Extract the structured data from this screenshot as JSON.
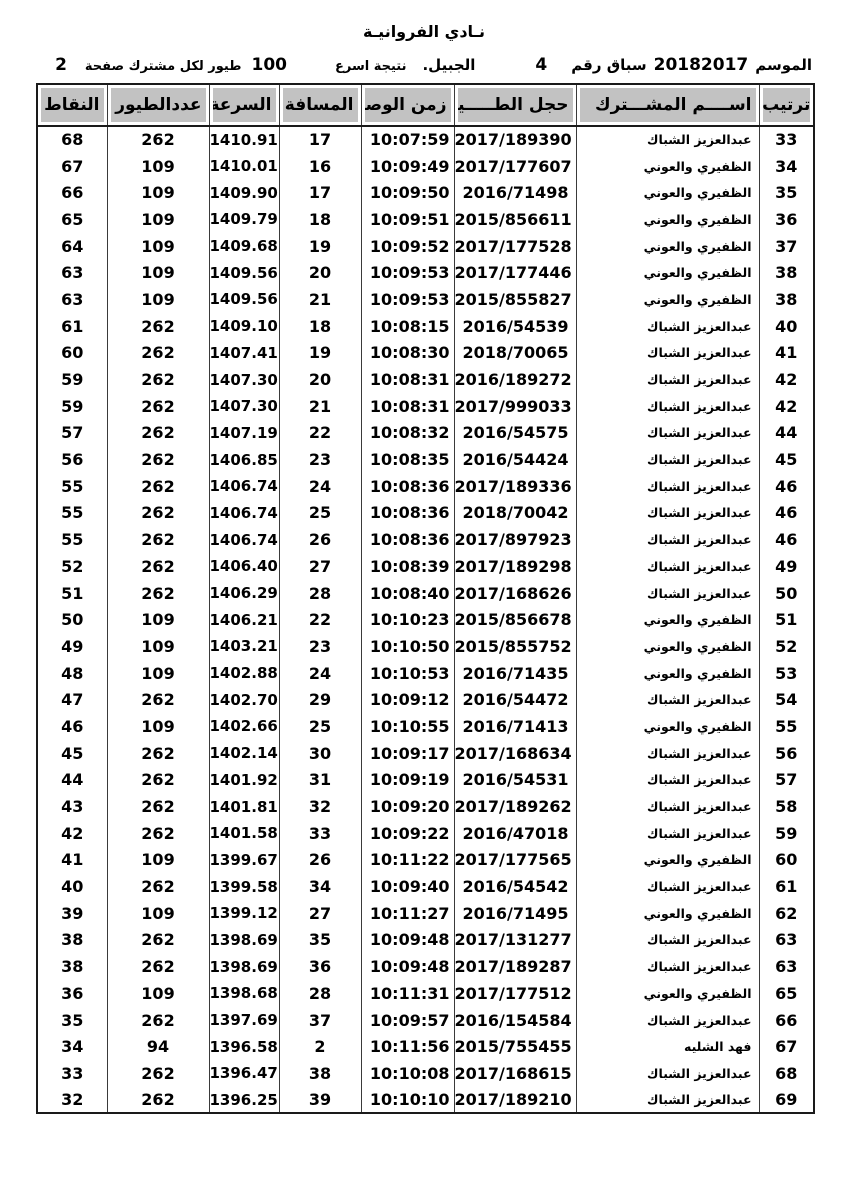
{
  "page": {
    "title": "نـادي الفروانيـة",
    "meta": {
      "season_label": "الموسم",
      "season_value": "20182017",
      "race_label": "سباق رقم",
      "race_value": "4",
      "location": "الجبيل.",
      "result_label": "نتيجة اسرع",
      "result_count": "100",
      "result_suffix": "طيور لكل مشترك صفحة",
      "page_number": "2"
    }
  },
  "table": {
    "headers": {
      "rank": "ترتيب",
      "name": "اســــم المشـــترك",
      "ring": "حجل الطـــــير",
      "time": "زمن الوصول",
      "distance": "المسافة",
      "speed": "السرعة",
      "birds": "عددالطيور",
      "points": "النقاط"
    },
    "rows": [
      {
        "rank": "33",
        "name": "عبدالعزيز الشباك",
        "ring": "2017/189390",
        "time": "10:07:59",
        "distance": "17",
        "speed": "1410.91",
        "birds": "262",
        "points": "68"
      },
      {
        "rank": "34",
        "name": "الظفيري والعوني",
        "ring": "2017/177607",
        "time": "10:09:49",
        "distance": "16",
        "speed": "1410.01",
        "birds": "109",
        "points": "67"
      },
      {
        "rank": "35",
        "name": "الظفيري والعوني",
        "ring": "2016/71498",
        "time": "10:09:50",
        "distance": "17",
        "speed": "1409.90",
        "birds": "109",
        "points": "66"
      },
      {
        "rank": "36",
        "name": "الظفيري والعوني",
        "ring": "2015/856611",
        "time": "10:09:51",
        "distance": "18",
        "speed": "1409.79",
        "birds": "109",
        "points": "65"
      },
      {
        "rank": "37",
        "name": "الظفيري والعوني",
        "ring": "2017/177528",
        "time": "10:09:52",
        "distance": "19",
        "speed": "1409.68",
        "birds": "109",
        "points": "64"
      },
      {
        "rank": "38",
        "name": "الظفيري والعوني",
        "ring": "2017/177446",
        "time": "10:09:53",
        "distance": "20",
        "speed": "1409.56",
        "birds": "109",
        "points": "63"
      },
      {
        "rank": "38",
        "name": "الظفيري والعوني",
        "ring": "2015/855827",
        "time": "10:09:53",
        "distance": "21",
        "speed": "1409.56",
        "birds": "109",
        "points": "63"
      },
      {
        "rank": "40",
        "name": "عبدالعزيز الشباك",
        "ring": "2016/54539",
        "time": "10:08:15",
        "distance": "18",
        "speed": "1409.10",
        "birds": "262",
        "points": "61"
      },
      {
        "rank": "41",
        "name": "عبدالعزيز الشباك",
        "ring": "2018/70065",
        "time": "10:08:30",
        "distance": "19",
        "speed": "1407.41",
        "birds": "262",
        "points": "60"
      },
      {
        "rank": "42",
        "name": "عبدالعزيز الشباك",
        "ring": "2016/189272",
        "time": "10:08:31",
        "distance": "20",
        "speed": "1407.30",
        "birds": "262",
        "points": "59"
      },
      {
        "rank": "42",
        "name": "عبدالعزيز الشباك",
        "ring": "2017/999033",
        "time": "10:08:31",
        "distance": "21",
        "speed": "1407.30",
        "birds": "262",
        "points": "59"
      },
      {
        "rank": "44",
        "name": "عبدالعزيز الشباك",
        "ring": "2016/54575",
        "time": "10:08:32",
        "distance": "22",
        "speed": "1407.19",
        "birds": "262",
        "points": "57"
      },
      {
        "rank": "45",
        "name": "عبدالعزيز الشباك",
        "ring": "2016/54424",
        "time": "10:08:35",
        "distance": "23",
        "speed": "1406.85",
        "birds": "262",
        "points": "56"
      },
      {
        "rank": "46",
        "name": "عبدالعزيز الشباك",
        "ring": "2017/189336",
        "time": "10:08:36",
        "distance": "24",
        "speed": "1406.74",
        "birds": "262",
        "points": "55"
      },
      {
        "rank": "46",
        "name": "عبدالعزيز الشباك",
        "ring": "2018/70042",
        "time": "10:08:36",
        "distance": "25",
        "speed": "1406.74",
        "birds": "262",
        "points": "55"
      },
      {
        "rank": "46",
        "name": "عبدالعزيز الشباك",
        "ring": "2017/897923",
        "time": "10:08:36",
        "distance": "26",
        "speed": "1406.74",
        "birds": "262",
        "points": "55"
      },
      {
        "rank": "49",
        "name": "عبدالعزيز الشباك",
        "ring": "2017/189298",
        "time": "10:08:39",
        "distance": "27",
        "speed": "1406.40",
        "birds": "262",
        "points": "52"
      },
      {
        "rank": "50",
        "name": "عبدالعزيز الشباك",
        "ring": "2017/168626",
        "time": "10:08:40",
        "distance": "28",
        "speed": "1406.29",
        "birds": "262",
        "points": "51"
      },
      {
        "rank": "51",
        "name": "الظفيري والعوني",
        "ring": "2015/856678",
        "time": "10:10:23",
        "distance": "22",
        "speed": "1406.21",
        "birds": "109",
        "points": "50"
      },
      {
        "rank": "52",
        "name": "الظفيري والعوني",
        "ring": "2015/855752",
        "time": "10:10:50",
        "distance": "23",
        "speed": "1403.21",
        "birds": "109",
        "points": "49"
      },
      {
        "rank": "53",
        "name": "الظفيري والعوني",
        "ring": "2016/71435",
        "time": "10:10:53",
        "distance": "24",
        "speed": "1402.88",
        "birds": "109",
        "points": "48"
      },
      {
        "rank": "54",
        "name": "عبدالعزيز الشباك",
        "ring": "2016/54472",
        "time": "10:09:12",
        "distance": "29",
        "speed": "1402.70",
        "birds": "262",
        "points": "47"
      },
      {
        "rank": "55",
        "name": "الظفيري والعوني",
        "ring": "2016/71413",
        "time": "10:10:55",
        "distance": "25",
        "speed": "1402.66",
        "birds": "109",
        "points": "46"
      },
      {
        "rank": "56",
        "name": "عبدالعزيز الشباك",
        "ring": "2017/168634",
        "time": "10:09:17",
        "distance": "30",
        "speed": "1402.14",
        "birds": "262",
        "points": "45"
      },
      {
        "rank": "57",
        "name": "عبدالعزيز الشباك",
        "ring": "2016/54531",
        "time": "10:09:19",
        "distance": "31",
        "speed": "1401.92",
        "birds": "262",
        "points": "44"
      },
      {
        "rank": "58",
        "name": "عبدالعزيز الشباك",
        "ring": "2017/189262",
        "time": "10:09:20",
        "distance": "32",
        "speed": "1401.81",
        "birds": "262",
        "points": "43"
      },
      {
        "rank": "59",
        "name": "عبدالعزيز الشباك",
        "ring": "2016/47018",
        "time": "10:09:22",
        "distance": "33",
        "speed": "1401.58",
        "birds": "262",
        "points": "42"
      },
      {
        "rank": "60",
        "name": "الظفيري والعوني",
        "ring": "2017/177565",
        "time": "10:11:22",
        "distance": "26",
        "speed": "1399.67",
        "birds": "109",
        "points": "41"
      },
      {
        "rank": "61",
        "name": "عبدالعزيز الشباك",
        "ring": "2016/54542",
        "time": "10:09:40",
        "distance": "34",
        "speed": "1399.58",
        "birds": "262",
        "points": "40"
      },
      {
        "rank": "62",
        "name": "الظفيري والعوني",
        "ring": "2016/71495",
        "time": "10:11:27",
        "distance": "27",
        "speed": "1399.12",
        "birds": "109",
        "points": "39"
      },
      {
        "rank": "63",
        "name": "عبدالعزيز الشباك",
        "ring": "2017/131277",
        "time": "10:09:48",
        "distance": "35",
        "speed": "1398.69",
        "birds": "262",
        "points": "38"
      },
      {
        "rank": "63",
        "name": "عبدالعزيز الشباك",
        "ring": "2017/189287",
        "time": "10:09:48",
        "distance": "36",
        "speed": "1398.69",
        "birds": "262",
        "points": "38"
      },
      {
        "rank": "65",
        "name": "الظفيري والعوني",
        "ring": "2017/177512",
        "time": "10:11:31",
        "distance": "28",
        "speed": "1398.68",
        "birds": "109",
        "points": "36"
      },
      {
        "rank": "66",
        "name": "عبدالعزيز الشباك",
        "ring": "2016/154584",
        "time": "10:09:57",
        "distance": "37",
        "speed": "1397.69",
        "birds": "262",
        "points": "35"
      },
      {
        "rank": "67",
        "name": "فهد الشليه",
        "ring": "2015/755455",
        "time": "10:11:56",
        "distance": "2",
        "speed": "1396.58",
        "birds": "94",
        "points": "34"
      },
      {
        "rank": "68",
        "name": "عبدالعزيز الشباك",
        "ring": "2017/168615",
        "time": "10:10:08",
        "distance": "38",
        "speed": "1396.47",
        "birds": "262",
        "points": "33"
      },
      {
        "rank": "69",
        "name": "عبدالعزيز الشباك",
        "ring": "2017/189210",
        "time": "10:10:10",
        "distance": "39",
        "speed": "1396.25",
        "birds": "262",
        "points": "32"
      }
    ]
  }
}
